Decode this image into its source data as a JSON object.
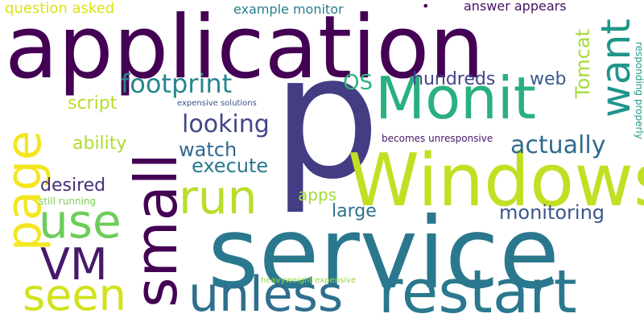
{
  "words": {
    "p": {
      "text": "p",
      "color": "#433d84"
    },
    "service": {
      "text": "service",
      "color": "#2a788e"
    },
    "application": {
      "text": "application",
      "color": "#440154"
    },
    "Windows": {
      "text": "Windows",
      "color": "#c2df23"
    },
    "restart": {
      "text": "restart",
      "color": "#2a788e"
    },
    "small": {
      "text": "small",
      "color": "#440154"
    },
    "Monit": {
      "text": "Monit",
      "color": "#2ab07f"
    },
    "page": {
      "text": "page",
      "color": "#f4e61e"
    },
    "unless": {
      "text": "unless",
      "color": "#2e6f8e"
    },
    "run": {
      "text": "run",
      "color": "#b8de29"
    },
    "use": {
      "text": "use",
      "color": "#6ccd5a"
    },
    "seen": {
      "text": "seen",
      "color": "#d2e21b"
    },
    "VM": {
      "text": "VM",
      "color": "#48186a"
    },
    "want": {
      "text": "want",
      "color": "#1f968b"
    },
    "footprint": {
      "text": "footprint",
      "color": "#25858e"
    },
    "looking": {
      "text": "looking",
      "color": "#404688"
    },
    "actually": {
      "text": "actually",
      "color": "#2f6c8e"
    },
    "watch": {
      "text": "watch",
      "color": "#31688e"
    },
    "execute": {
      "text": "execute",
      "color": "#2a788e"
    },
    "monitoring": {
      "text": "monitoring",
      "color": "#39568c"
    },
    "OS": {
      "text": "OS",
      "color": "#2eb37c"
    },
    "hundreds": {
      "text": "hundreds",
      "color": "#414487"
    },
    "web": {
      "text": "web",
      "color": "#38598c"
    },
    "Tomcat": {
      "text": "Tomcat",
      "color": "#a5db36"
    },
    "script": {
      "text": "script",
      "color": "#b5de2b"
    },
    "ability": {
      "text": "ability",
      "color": "#addc30"
    },
    "desired": {
      "text": "desired",
      "color": "#472d7b"
    },
    "apps": {
      "text": "apps",
      "color": "#a0da39"
    },
    "large": {
      "text": "large",
      "color": "#2d708e"
    },
    "question_asked": {
      "text": "question asked",
      "color": "#d8e219"
    },
    "example_monitor": {
      "text": "example monitor",
      "color": "#287d8e"
    },
    "answer_appears": {
      "text": "answer appears",
      "color": "#471063"
    },
    "expensive_solutions": {
      "text": "expensive solutions",
      "color": "#3b528b"
    },
    "becomes_unresponsive": {
      "text": "becomes unresponsive",
      "color": "#481668"
    },
    "responding_properly": {
      "text": "responding properly",
      "color": "#1f9a8a"
    },
    "still_running": {
      "text": "still running",
      "color": "#7ad151"
    },
    "heavyweight_expensive": {
      "text": "heavyweight expensive",
      "color": "#95d840"
    },
    "dot": {
      "text": "•",
      "color": "#440154"
    }
  }
}
